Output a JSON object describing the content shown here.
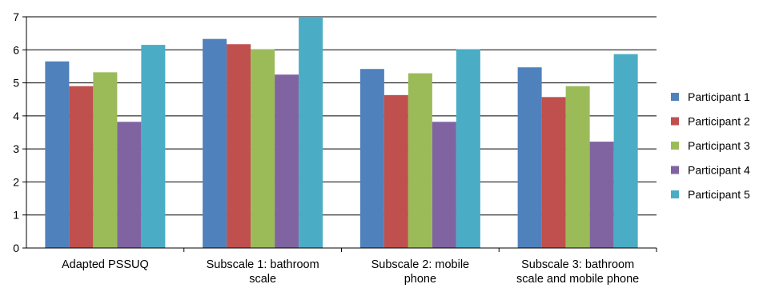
{
  "chart_data": {
    "type": "bar",
    "title": "",
    "xlabel": "",
    "ylabel": "",
    "ylim": [
      0,
      7
    ],
    "yticks": [
      "0",
      "1",
      "2",
      "3",
      "4",
      "5",
      "6",
      "7"
    ],
    "grid": true,
    "legend_position": "right",
    "categories": [
      [
        "Adapted PSSUQ"
      ],
      [
        "Subscale 1: bathroom",
        "scale"
      ],
      [
        "Subscale 2: mobile",
        "phone"
      ],
      [
        "Subscale 3: bathroom",
        "scale and mobile phone"
      ]
    ],
    "series": [
      {
        "name": "Participant 1",
        "color": "#4F81BD",
        "values": [
          5.65,
          6.33,
          5.42,
          5.47
        ]
      },
      {
        "name": "Participant 2",
        "color": "#C0504D",
        "values": [
          4.9,
          6.17,
          4.63,
          4.57
        ]
      },
      {
        "name": "Participant 3",
        "color": "#9BBB59",
        "values": [
          5.32,
          6.02,
          5.29,
          4.9
        ]
      },
      {
        "name": "Participant 4",
        "color": "#8064A2",
        "values": [
          3.82,
          5.25,
          3.82,
          3.22
        ]
      },
      {
        "name": "Participant 5",
        "color": "#4BACC6",
        "values": [
          6.15,
          7.0,
          6.02,
          5.87
        ]
      }
    ]
  }
}
